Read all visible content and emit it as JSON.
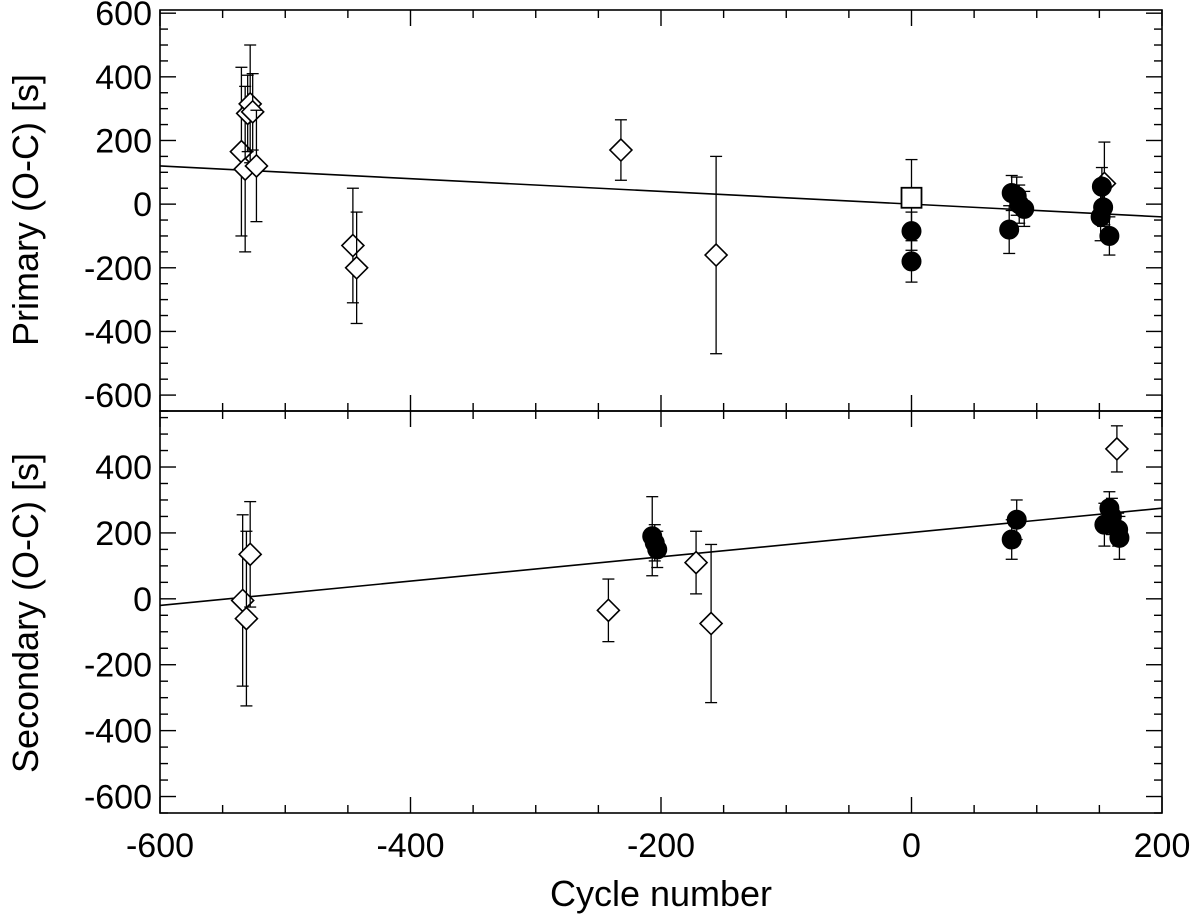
{
  "chart_data": [
    {
      "type": "scatter",
      "panel": "top",
      "ylabel": "Primary (O-C) [s]",
      "xlim": [
        -600,
        200
      ],
      "ylim": [
        -650,
        610
      ],
      "yticks": [
        "600",
        "400",
        "200",
        "0",
        "-200",
        "-400",
        "-600"
      ],
      "ytick_values": [
        600,
        400,
        200,
        0,
        -200,
        -400,
        -600
      ],
      "fit_line": {
        "x": [
          -600,
          200
        ],
        "y": [
          120,
          -40
        ]
      },
      "series": [
        {
          "marker": "diamond-open",
          "points": [
            {
              "x": -535,
              "y": 165,
              "err": 265
            },
            {
              "x": -532,
              "y": 110,
              "err": 260
            },
            {
              "x": -530,
              "y": 285,
              "err": 120
            },
            {
              "x": -528,
              "y": 315,
              "err": 185
            },
            {
              "x": -526,
              "y": 290,
              "err": 120
            },
            {
              "x": -523,
              "y": 120,
              "err": 175
            },
            {
              "x": -446,
              "y": -130,
              "err": 180
            },
            {
              "x": -443,
              "y": -200,
              "err": 175
            },
            {
              "x": -232,
              "y": 170,
              "err": 95
            },
            {
              "x": -156,
              "y": -160,
              "err": 310
            },
            {
              "x": 154,
              "y": 65,
              "err": 130
            }
          ]
        },
        {
          "marker": "square-open",
          "points": [
            {
              "x": 0,
              "y": 20,
              "err": 120
            }
          ]
        },
        {
          "marker": "circle-filled",
          "points": [
            {
              "x": 0,
              "y": -85,
              "err": 60
            },
            {
              "x": 0,
              "y": -180,
              "err": 65
            },
            {
              "x": 78,
              "y": -80,
              "err": 75
            },
            {
              "x": 80,
              "y": 35,
              "err": 55
            },
            {
              "x": 84,
              "y": 25,
              "err": 60
            },
            {
              "x": 86,
              "y": 0,
              "err": 60
            },
            {
              "x": 90,
              "y": -15,
              "err": 55
            },
            {
              "x": 151,
              "y": -40,
              "err": 75
            },
            {
              "x": 152,
              "y": 55,
              "err": 60
            },
            {
              "x": 153,
              "y": -10,
              "err": 60
            },
            {
              "x": 158,
              "y": -100,
              "err": 60
            }
          ]
        }
      ]
    },
    {
      "type": "scatter",
      "panel": "bottom",
      "ylabel": "Secondary (O-C) [s]",
      "xlabel": "Cycle number",
      "xlim": [
        -600,
        200
      ],
      "ylim": [
        -650,
        570
      ],
      "xticks": [
        "-600",
        "-400",
        "-200",
        "0",
        "200"
      ],
      "xtick_values": [
        -600,
        -400,
        -200,
        0,
        200
      ],
      "yticks": [
        "400",
        "200",
        "0",
        "-200",
        "-400",
        "-600"
      ],
      "ytick_values": [
        400,
        200,
        0,
        -200,
        -400,
        -600
      ],
      "fit_line": {
        "x": [
          -600,
          200
        ],
        "y": [
          -20,
          275
        ]
      },
      "series": [
        {
          "marker": "diamond-open",
          "points": [
            {
              "x": -534,
              "y": -5,
              "err": 260
            },
            {
              "x": -531,
              "y": -60,
              "err": 265
            },
            {
              "x": -528,
              "y": 135,
              "err": 160
            },
            {
              "x": -242,
              "y": -35,
              "err": 95
            },
            {
              "x": -172,
              "y": 110,
              "err": 95
            },
            {
              "x": -160,
              "y": -75,
              "err": 240
            },
            {
              "x": 164,
              "y": 455,
              "err": 70
            }
          ]
        },
        {
          "marker": "circle-filled",
          "points": [
            {
              "x": -207,
              "y": 190,
              "err": 120
            },
            {
              "x": -205,
              "y": 170,
              "err": 55
            },
            {
              "x": -203,
              "y": 150,
              "err": 55
            },
            {
              "x": 80,
              "y": 180,
              "err": 60
            },
            {
              "x": 84,
              "y": 240,
              "err": 60
            },
            {
              "x": 154,
              "y": 225,
              "err": 65
            },
            {
              "x": 158,
              "y": 275,
              "err": 50
            },
            {
              "x": 160,
              "y": 250,
              "err": 55
            },
            {
              "x": 165,
              "y": 210,
              "err": 50
            },
            {
              "x": 166,
              "y": 185,
              "err": 65
            }
          ]
        }
      ]
    }
  ]
}
